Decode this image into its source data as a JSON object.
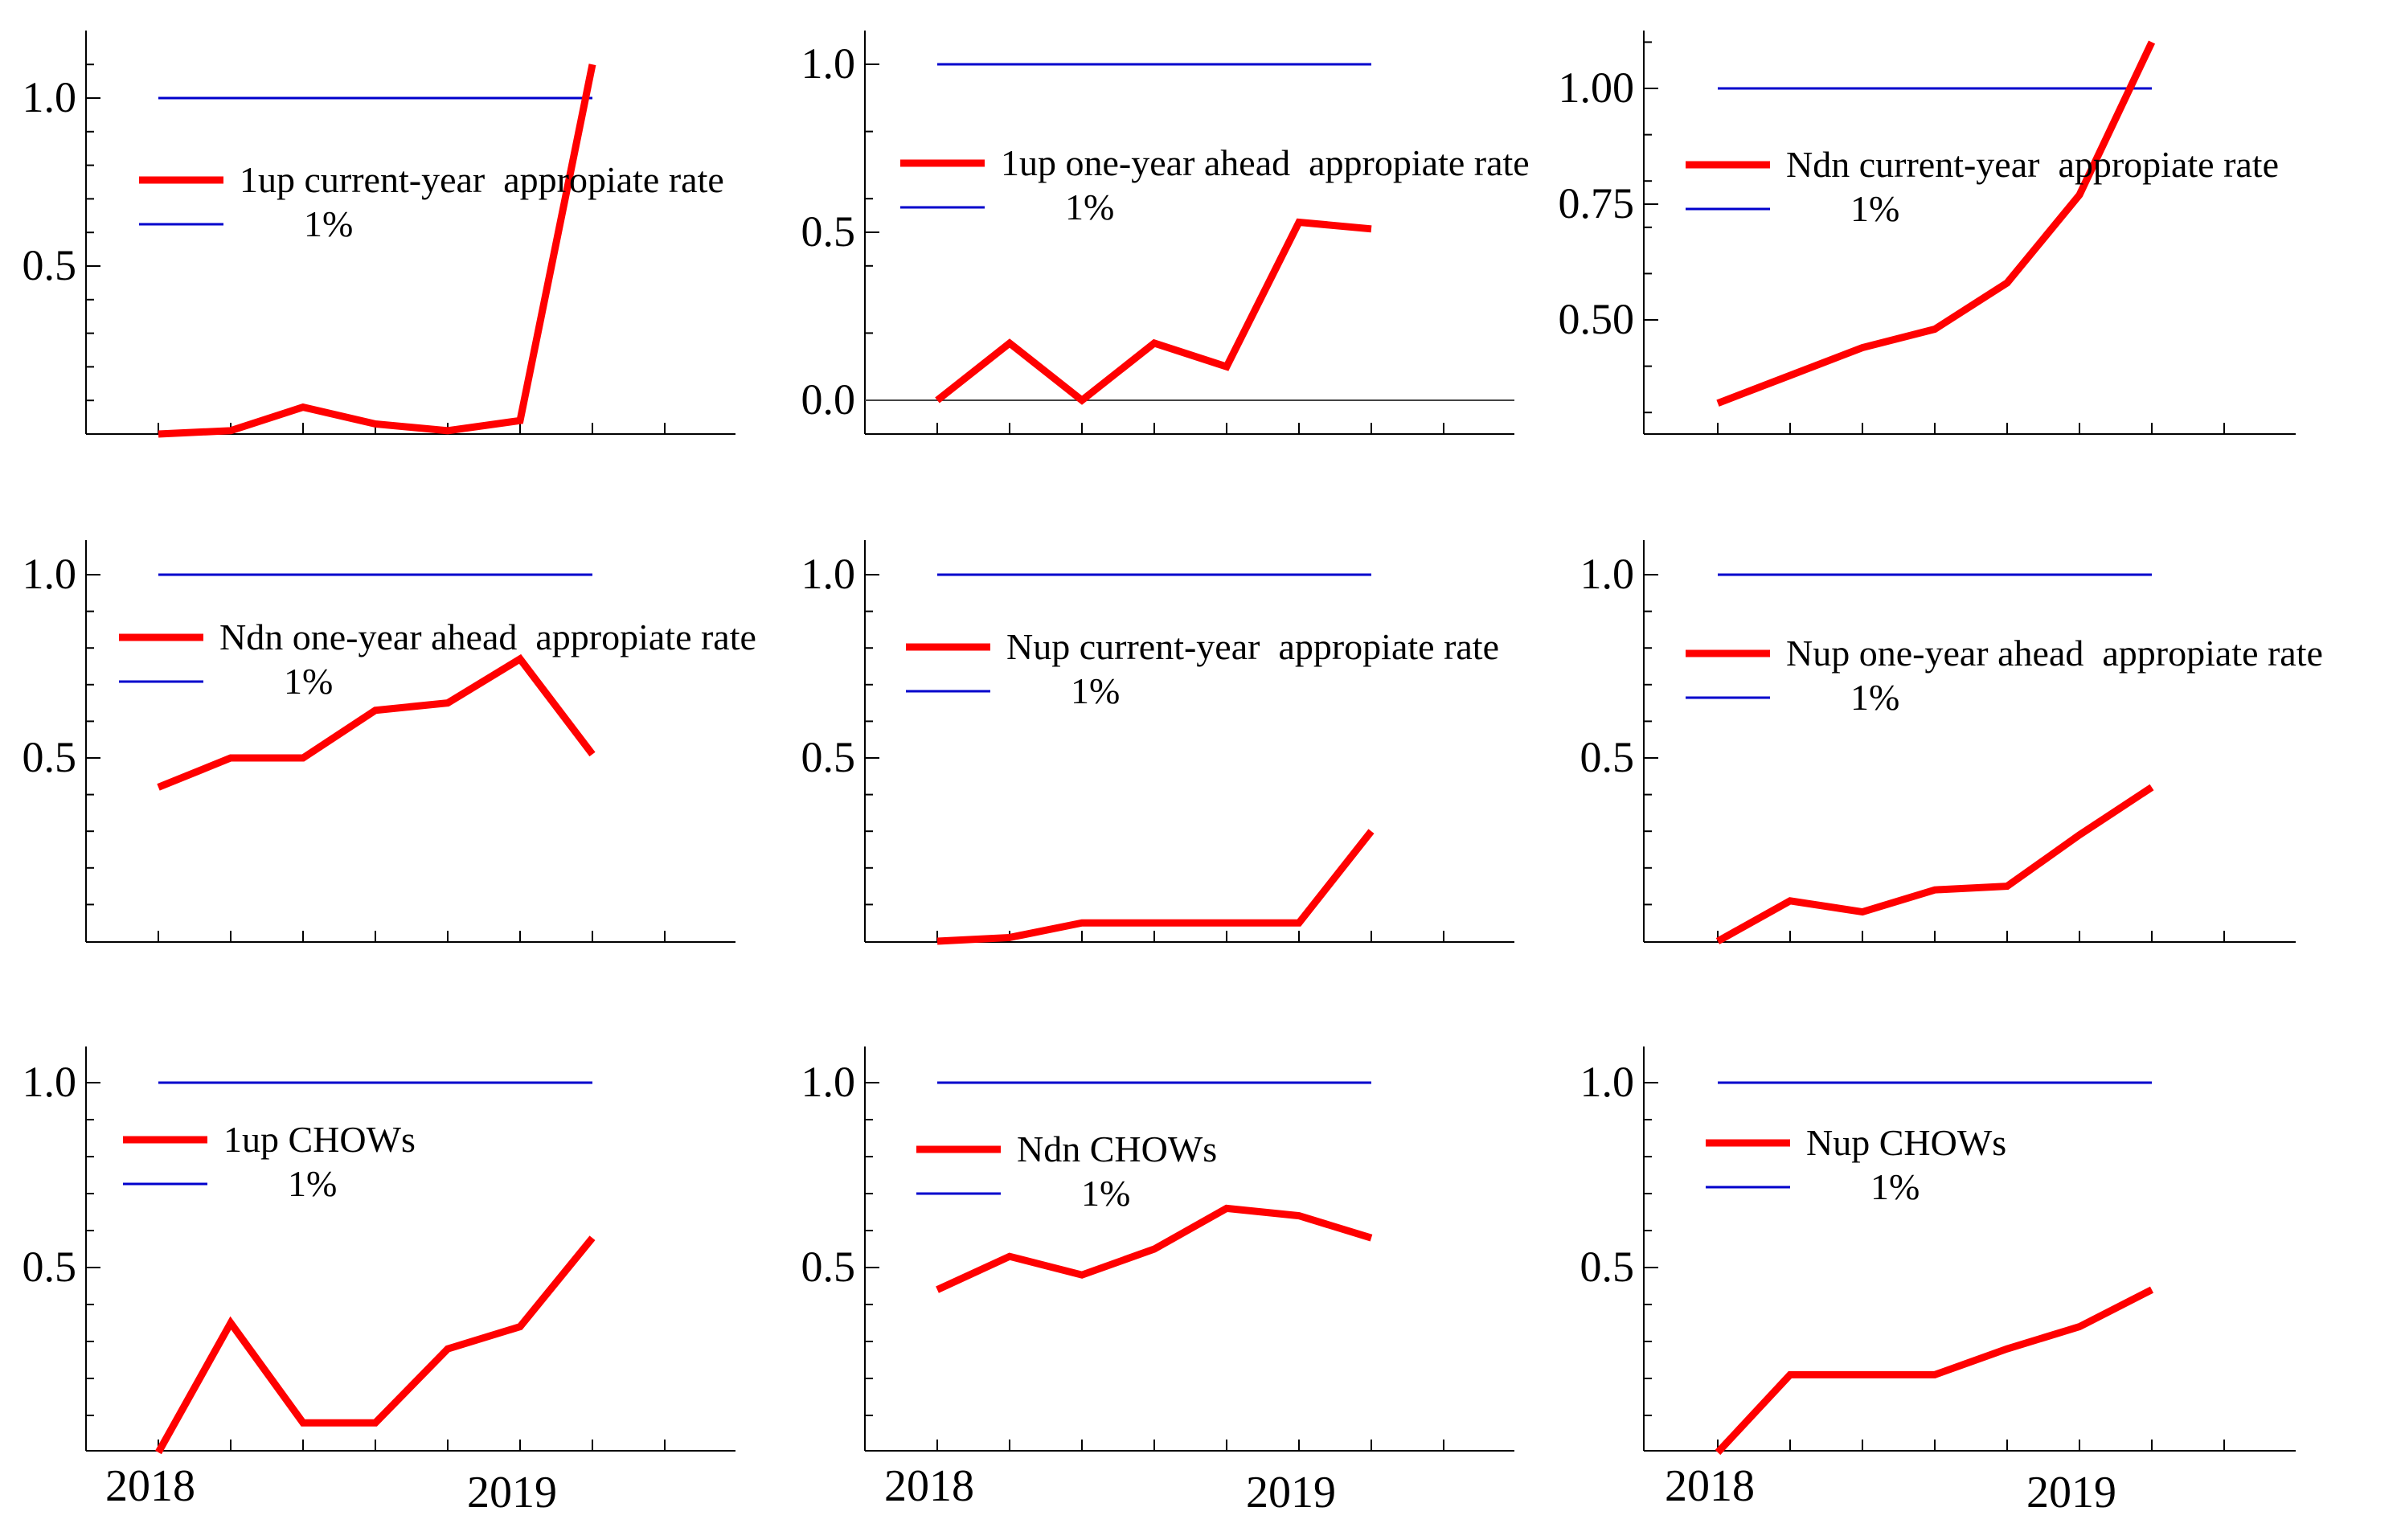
{
  "colors": {
    "series": "#ff0000",
    "reference": "#0000cc",
    "axis": "#000000"
  },
  "chart_data": [
    {
      "type": "line",
      "title": "",
      "x": [
        0,
        1,
        2,
        3,
        4,
        5,
        6
      ],
      "series": [
        {
          "name": "1up current-year  appropiate rate",
          "values": [
            0.0,
            0.01,
            0.08,
            0.03,
            0.01,
            0.04,
            1.1
          ]
        },
        {
          "name": "1%",
          "values": [
            1,
            1,
            1,
            1,
            1,
            1,
            1
          ]
        }
      ],
      "xticks": [],
      "yticks": [
        "0.5",
        "1.0"
      ],
      "ytick_values": [
        0.5,
        1.0
      ],
      "ylim": [
        0,
        1.2
      ]
    },
    {
      "type": "line",
      "title": "",
      "x": [
        0,
        1,
        2,
        3,
        4,
        5,
        6
      ],
      "series": [
        {
          "name": "1up one-year ahead  appropiate rate",
          "values": [
            0.0,
            0.17,
            0.0,
            0.17,
            0.1,
            0.53,
            0.51
          ]
        },
        {
          "name": "1%",
          "values": [
            1,
            1,
            1,
            1,
            1,
            1,
            1
          ]
        }
      ],
      "xticks": [],
      "yticks": [
        "0.0",
        "0.5",
        "1.0"
      ],
      "ytick_values": [
        0.0,
        0.5,
        1.0
      ],
      "ylim": [
        -0.1,
        1.1
      ],
      "zero_line": true
    },
    {
      "type": "line",
      "title": "",
      "x": [
        0,
        1,
        2,
        3,
        4,
        5,
        6
      ],
      "series": [
        {
          "name": "Ndn current-year  appropiate rate",
          "values": [
            0.32,
            0.38,
            0.44,
            0.48,
            0.58,
            0.77,
            1.1
          ]
        },
        {
          "name": "1%",
          "values": [
            1,
            1,
            1,
            1,
            1,
            1,
            1
          ]
        }
      ],
      "xticks": [],
      "yticks": [
        "0.50",
        "0.75",
        "1.00"
      ],
      "ytick_values": [
        0.5,
        0.75,
        1.0
      ],
      "ylim": [
        0.25,
        1.13
      ]
    },
    {
      "type": "line",
      "title": "",
      "x": [
        0,
        1,
        2,
        3,
        4,
        5,
        6
      ],
      "series": [
        {
          "name": "Ndn one-year ahead  appropiate rate",
          "values": [
            0.42,
            0.5,
            0.5,
            0.63,
            0.65,
            0.77,
            0.51
          ]
        },
        {
          "name": "1%",
          "values": [
            1,
            1,
            1,
            1,
            1,
            1,
            1
          ]
        }
      ],
      "xticks": [],
      "yticks": [
        "0.5",
        "1.0"
      ],
      "ytick_values": [
        0.5,
        1.0
      ],
      "ylim": [
        0,
        1.1
      ]
    },
    {
      "type": "line",
      "title": "",
      "x": [
        0,
        1,
        2,
        3,
        4,
        5,
        6
      ],
      "series": [
        {
          "name": "Nup current-year  appropiate rate",
          "values": [
            0.0,
            0.01,
            0.05,
            0.05,
            0.05,
            0.05,
            0.3
          ]
        },
        {
          "name": "1%",
          "values": [
            1,
            1,
            1,
            1,
            1,
            1,
            1
          ]
        }
      ],
      "xticks": [],
      "yticks": [
        "0.5",
        "1.0"
      ],
      "ytick_values": [
        0.5,
        1.0
      ],
      "ylim": [
        0,
        1.1
      ]
    },
    {
      "type": "line",
      "title": "",
      "x": [
        0,
        1,
        2,
        3,
        4,
        5,
        6
      ],
      "series": [
        {
          "name": "Nup one-year ahead  appropiate rate",
          "values": [
            0.0,
            0.11,
            0.08,
            0.14,
            0.15,
            0.29,
            0.42
          ]
        },
        {
          "name": "1%",
          "values": [
            1,
            1,
            1,
            1,
            1,
            1,
            1
          ]
        }
      ],
      "xticks": [],
      "yticks": [
        "0.5",
        "1.0"
      ],
      "ytick_values": [
        0.5,
        1.0
      ],
      "ylim": [
        0,
        1.1
      ]
    },
    {
      "type": "line",
      "title": "",
      "x": [
        0,
        1,
        2,
        3,
        4,
        5,
        6
      ],
      "series": [
        {
          "name": "1up CHOWs",
          "values": [
            0.0,
            0.35,
            0.08,
            0.08,
            0.28,
            0.34,
            0.58
          ]
        },
        {
          "name": "1%",
          "values": [
            1,
            1,
            1,
            1,
            1,
            1,
            1
          ]
        }
      ],
      "xticks": [
        "2018",
        "2019"
      ],
      "xtick_values": [
        0,
        5
      ],
      "yticks": [
        "0.5",
        "1.0"
      ],
      "ytick_values": [
        0.5,
        1.0
      ],
      "ylim": [
        0,
        1.1
      ]
    },
    {
      "type": "line",
      "title": "",
      "x": [
        0,
        1,
        2,
        3,
        4,
        5,
        6
      ],
      "series": [
        {
          "name": "Ndn CHOWs",
          "values": [
            0.44,
            0.53,
            0.48,
            0.55,
            0.66,
            0.64,
            0.58
          ]
        },
        {
          "name": "1%",
          "values": [
            1,
            1,
            1,
            1,
            1,
            1,
            1
          ]
        }
      ],
      "xticks": [
        "2018",
        "2019"
      ],
      "xtick_values": [
        0,
        5
      ],
      "yticks": [
        "0.5",
        "1.0"
      ],
      "ytick_values": [
        0.5,
        1.0
      ],
      "ylim": [
        0,
        1.1
      ]
    },
    {
      "type": "line",
      "title": "",
      "x": [
        0,
        1,
        2,
        3,
        4,
        5,
        6
      ],
      "series": [
        {
          "name": "Nup CHOWs",
          "values": [
            0.0,
            0.21,
            0.21,
            0.21,
            0.28,
            0.34,
            0.44
          ]
        },
        {
          "name": "1%",
          "values": [
            1,
            1,
            1,
            1,
            1,
            1,
            1
          ]
        }
      ],
      "xticks": [
        "2018",
        "2019"
      ],
      "xtick_values": [
        0,
        5
      ],
      "yticks": [
        "0.5",
        "1.0"
      ],
      "ytick_values": [
        0.5,
        1.0
      ],
      "ylim": [
        0,
        1.1
      ]
    }
  ]
}
